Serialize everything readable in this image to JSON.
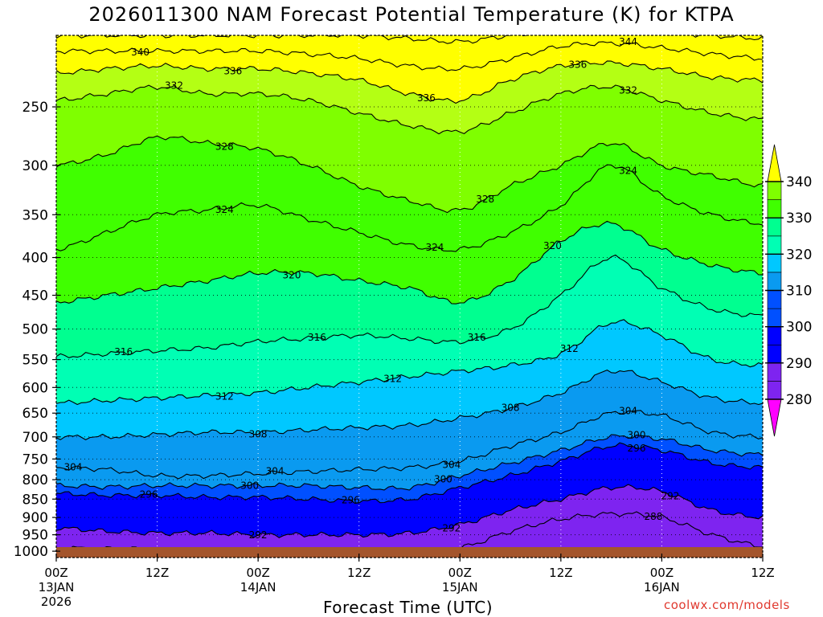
{
  "title": "2026011300 NAM Forecast Potential Temperature (K) for KTPA",
  "xlabel": "Forecast Time (UTC)",
  "credit": "coolwx.com/models",
  "colors": {
    "ground": "#a4552c",
    "contour": "#000000",
    "bands": [
      "#ff00ff",
      "#a01cf4",
      "#7e24f0",
      "#0000ff",
      "#0050ff",
      "#0a9af0",
      "#00c8ff",
      "#00ffb4",
      "#00ff90",
      "#40ff00",
      "#7fff00",
      "#b4ff14",
      "#ffff00"
    ]
  },
  "chart_data": {
    "type": "heatmap",
    "title": "2026011300 NAM Forecast Potential Temperature (K) for KTPA",
    "xlabel": "Forecast Time (UTC)",
    "ylabel": "",
    "x_ticks": [
      {
        "hour": 0,
        "label": "00Z",
        "date": "13JAN",
        "year": "2026"
      },
      {
        "hour": 12,
        "label": "12Z",
        "date": "",
        "year": ""
      },
      {
        "hour": 24,
        "label": "00Z",
        "date": "14JAN",
        "year": ""
      },
      {
        "hour": 36,
        "label": "12Z",
        "date": "",
        "year": ""
      },
      {
        "hour": 48,
        "label": "00Z",
        "date": "15JAN",
        "year": ""
      },
      {
        "hour": 60,
        "label": "12Z",
        "date": "",
        "year": ""
      },
      {
        "hour": 72,
        "label": "00Z",
        "date": "16JAN",
        "year": ""
      },
      {
        "hour": 84,
        "label": "12Z",
        "date": "",
        "year": ""
      }
    ],
    "xlim": [
      0,
      84
    ],
    "y_ticks": [
      250,
      300,
      350,
      400,
      450,
      500,
      550,
      600,
      650,
      700,
      750,
      800,
      850,
      900,
      950,
      1000
    ],
    "ylim": [
      1020,
      200
    ],
    "y_scale": "log pressure (hPa)",
    "grid": true,
    "colorbar_ticks": [
      280,
      290,
      300,
      310,
      320,
      330,
      340
    ],
    "contour_interval": 4,
    "profile_times": [
      0,
      6,
      12,
      18,
      24,
      30,
      36,
      42,
      48,
      54,
      60,
      66,
      72,
      78,
      84
    ],
    "contours": [
      {
        "value": 288,
        "pressures": [
          990,
          992,
          995,
          1000,
          1005,
          1005,
          1005,
          1005,
          990,
          940,
          905,
          890,
          900,
          950,
          985
        ]
      },
      {
        "value": 292,
        "pressures": [
          930,
          940,
          945,
          945,
          950,
          950,
          950,
          945,
          920,
          880,
          850,
          820,
          830,
          880,
          900
        ]
      },
      {
        "value": 296,
        "pressures": [
          835,
          840,
          840,
          845,
          845,
          850,
          855,
          850,
          820,
          790,
          755,
          720,
          730,
          760,
          770
        ]
      },
      {
        "value": 300,
        "pressures": [
          815,
          818,
          815,
          815,
          815,
          815,
          820,
          820,
          790,
          760,
          730,
          700,
          705,
          730,
          740
        ]
      },
      {
        "value": 304,
        "pressures": [
          770,
          775,
          790,
          790,
          785,
          780,
          775,
          770,
          755,
          720,
          690,
          650,
          655,
          690,
          700
        ]
      },
      {
        "value": 308,
        "pressures": [
          700,
          700,
          695,
          690,
          690,
          685,
          680,
          675,
          660,
          640,
          610,
          570,
          590,
          620,
          630
        ]
      },
      {
        "value": 312,
        "pressures": [
          630,
          625,
          620,
          615,
          610,
          600,
          590,
          580,
          570,
          560,
          540,
          490,
          510,
          550,
          560
        ]
      },
      {
        "value": 316,
        "pressures": [
          545,
          540,
          535,
          530,
          520,
          515,
          510,
          515,
          520,
          500,
          450,
          400,
          440,
          470,
          480
        ]
      },
      {
        "value": 320,
        "pressures": [
          460,
          450,
          440,
          430,
          420,
          420,
          430,
          440,
          460,
          430,
          380,
          360,
          390,
          410,
          420
        ]
      },
      {
        "value": 324,
        "pressures": [
          390,
          370,
          350,
          345,
          340,
          355,
          370,
          385,
          390,
          370,
          340,
          300,
          330,
          350,
          360
        ]
      },
      {
        "value": 328,
        "pressures": [
          300,
          290,
          275,
          280,
          285,
          300,
          320,
          335,
          345,
          320,
          300,
          280,
          300,
          310,
          320
        ]
      },
      {
        "value": 332,
        "pressures": [
          245,
          240,
          235,
          240,
          240,
          245,
          255,
          265,
          270,
          255,
          240,
          235,
          245,
          255,
          260
        ]
      },
      {
        "value": 336,
        "pressures": [
          225,
          222,
          220,
          222,
          222,
          225,
          230,
          240,
          245,
          230,
          220,
          218,
          222,
          228,
          230
        ]
      },
      {
        "value": 340,
        "pressures": [
          210,
          210,
          210,
          210,
          210,
          212,
          215,
          220,
          222,
          215,
          207,
          205,
          208,
          212,
          215
        ]
      },
      {
        "value": 344,
        "pressures": [
          200,
          200,
          200,
          200,
          200,
          200,
          200,
          202,
          204,
          200,
          198,
          196,
          198,
          200,
          202
        ]
      }
    ],
    "contour_labels": [
      {
        "value": 340,
        "hour": 10
      },
      {
        "value": 336,
        "hour": 21
      },
      {
        "value": 344,
        "hour": 68
      },
      {
        "value": 332,
        "hour": 14
      },
      {
        "value": 336,
        "hour": 62
      },
      {
        "value": 336,
        "hour": 44
      },
      {
        "value": 332,
        "hour": 68
      },
      {
        "value": 328,
        "hour": 20
      },
      {
        "value": 324,
        "hour": 68
      },
      {
        "value": 324,
        "hour": 20
      },
      {
        "value": 328,
        "hour": 51
      },
      {
        "value": 324,
        "hour": 45
      },
      {
        "value": 320,
        "hour": 59
      },
      {
        "value": 320,
        "hour": 28
      },
      {
        "value": 316,
        "hour": 31
      },
      {
        "value": 316,
        "hour": 8
      },
      {
        "value": 316,
        "hour": 50
      },
      {
        "value": 312,
        "hour": 61
      },
      {
        "value": 312,
        "hour": 40
      },
      {
        "value": 312,
        "hour": 20
      },
      {
        "value": 308,
        "hour": 54
      },
      {
        "value": 304,
        "hour": 68
      },
      {
        "value": 308,
        "hour": 24
      },
      {
        "value": 300,
        "hour": 69
      },
      {
        "value": 304,
        "hour": 47
      },
      {
        "value": 296,
        "hour": 69
      },
      {
        "value": 304,
        "hour": 2
      },
      {
        "value": 304,
        "hour": 26
      },
      {
        "value": 300,
        "hour": 23
      },
      {
        "value": 292,
        "hour": 73
      },
      {
        "value": 296,
        "hour": 11
      },
      {
        "value": 300,
        "hour": 46
      },
      {
        "value": 296,
        "hour": 35
      },
      {
        "value": 292,
        "hour": 47
      },
      {
        "value": 288,
        "hour": 71
      },
      {
        "value": 292,
        "hour": 24
      }
    ]
  }
}
